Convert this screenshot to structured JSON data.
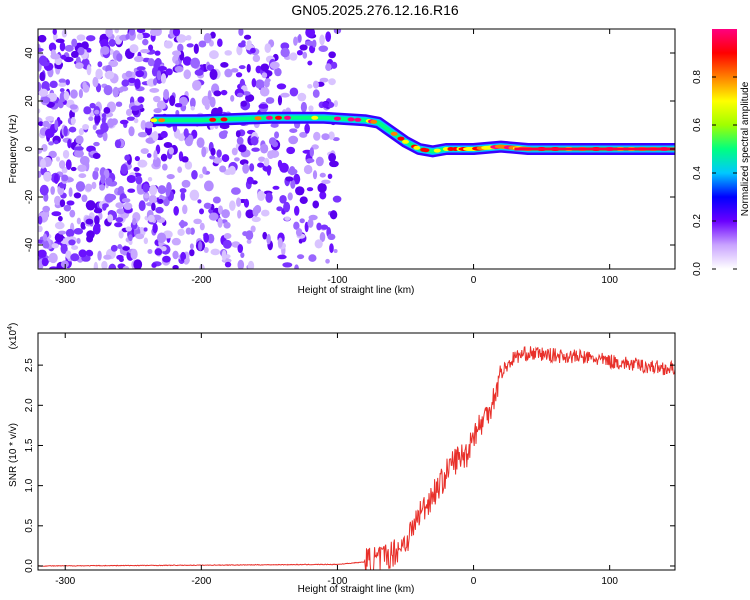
{
  "figure": {
    "title": "GN05.2025.276.12.16.R16"
  },
  "chart_data": [
    {
      "type": "heatmap",
      "xlabel": "Height of straight line (km)",
      "ylabel": "Frequency (Hz)",
      "xlim": [
        -320,
        148
      ],
      "ylim": [
        -50,
        50
      ],
      "xticks": [
        -300,
        -200,
        -100,
        0,
        100
      ],
      "yticks": [
        -40,
        -20,
        0,
        20,
        40
      ],
      "colorbar": {
        "label": "Normalized spectral amplitude",
        "range": [
          0,
          1
        ],
        "ticks": [
          "0.0",
          "0.2",
          "0.4",
          "0.6",
          "0.8"
        ],
        "stops": [
          "#ffffff",
          "#c9a3ff",
          "#6a00ff",
          "#0000ff",
          "#00c8ff",
          "#00ff80",
          "#a0ff00",
          "#ffff00",
          "#ff8000",
          "#ff0000",
          "#ff0080"
        ]
      },
      "signal_track": {
        "x": [
          -235,
          -200,
          -150,
          -110,
          -80,
          -70,
          -60,
          -50,
          -40,
          -30,
          -20,
          0,
          20,
          40,
          100,
          148
        ],
        "frequency": [
          12,
          12,
          13,
          13,
          12,
          11,
          7,
          3,
          0,
          -1,
          0,
          0,
          1,
          0,
          0,
          0
        ]
      },
      "noise_region_x": [
        -320,
        -100
      ],
      "grid": false
    },
    {
      "type": "line",
      "xlabel": "Height of straight line (km)",
      "ylabel": "SNR (10 * v/v)",
      "yscale_label": "(x10",
      "yscale_exponent": "4",
      "xlim": [
        -320,
        148
      ],
      "ylim": [
        -0.05,
        2.9
      ],
      "xticks": [
        -300,
        -200,
        -100,
        0,
        100
      ],
      "yticks": [
        "0.0",
        "0.5",
        "1.0",
        "1.5",
        "2.0",
        "2.5"
      ],
      "series": [
        {
          "color": "#e8302a",
          "x": [
            -320,
            -200,
            -100,
            -80,
            -70,
            -60,
            -50,
            -45,
            -40,
            -35,
            -30,
            -25,
            -20,
            -15,
            -10,
            -5,
            0,
            5,
            10,
            15,
            20,
            30,
            40,
            60,
            80,
            100,
            120,
            148
          ],
          "y": [
            0.0,
            0.01,
            0.02,
            0.05,
            0.08,
            0.15,
            0.3,
            0.45,
            0.65,
            0.75,
            0.9,
            1.0,
            1.15,
            1.3,
            1.35,
            1.4,
            1.65,
            1.75,
            1.9,
            2.1,
            2.4,
            2.6,
            2.65,
            2.62,
            2.6,
            2.55,
            2.5,
            2.45
          ]
        }
      ],
      "grid": false
    }
  ]
}
